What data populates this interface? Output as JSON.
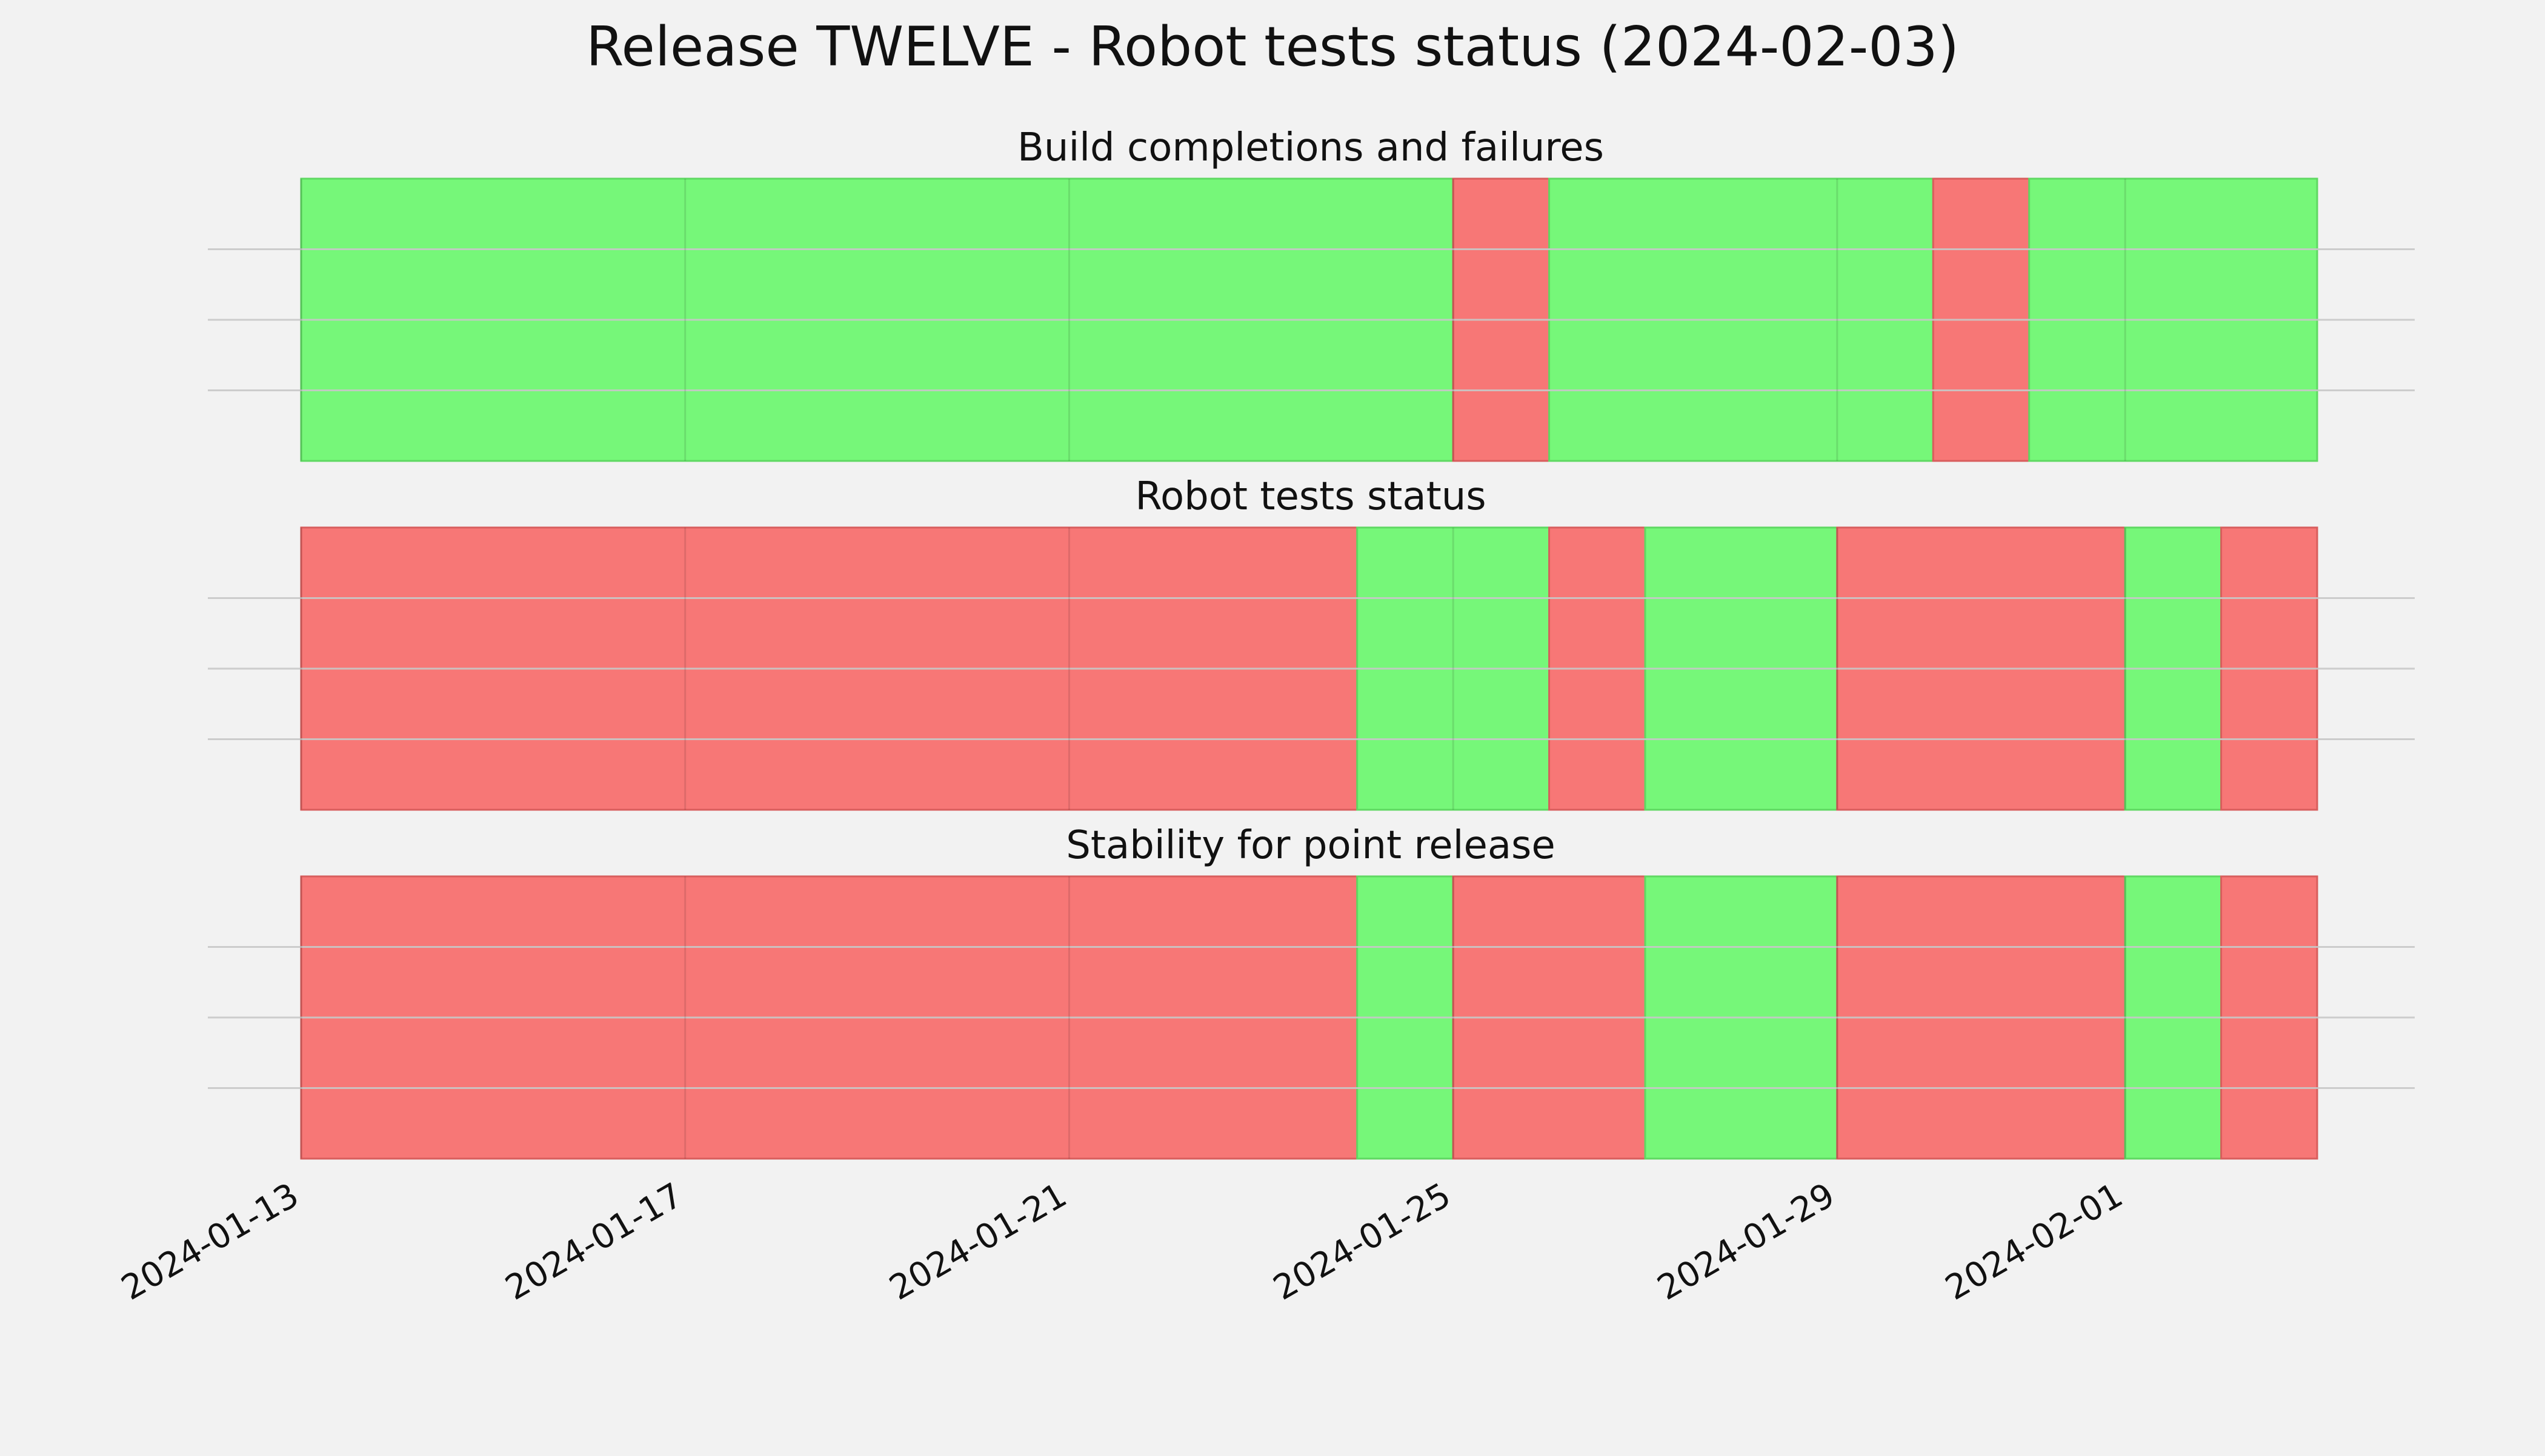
{
  "title": "Release TWELVE - Robot tests status (2024-02-03)",
  "colors": {
    "background": "#f2f2f2",
    "pass": "#76f779",
    "fail": "#f77776",
    "grid": "#c8c8c8"
  },
  "chart_data": {
    "type": "timeline",
    "x_ticks": [
      "2024-01-13",
      "2024-01-17",
      "2024-01-21",
      "2024-01-25",
      "2024-01-29",
      "2024-02-01"
    ],
    "xlim": [
      "2024-01-13",
      "2024-02-03"
    ],
    "grid": true,
    "panels": [
      {
        "title": "Build completions and failures",
        "segments": [
          {
            "start": "2024-01-13",
            "end": "2024-01-25",
            "status": "pass"
          },
          {
            "start": "2024-01-25",
            "end": "2024-01-26",
            "status": "fail"
          },
          {
            "start": "2024-01-26",
            "end": "2024-01-30",
            "status": "pass"
          },
          {
            "start": "2024-01-30",
            "end": "2024-01-31",
            "status": "fail"
          },
          {
            "start": "2024-01-31",
            "end": "2024-02-03",
            "status": "pass"
          }
        ]
      },
      {
        "title": "Robot tests status",
        "segments": [
          {
            "start": "2024-01-13",
            "end": "2024-01-24",
            "status": "fail"
          },
          {
            "start": "2024-01-24",
            "end": "2024-01-26",
            "status": "pass"
          },
          {
            "start": "2024-01-26",
            "end": "2024-01-27",
            "status": "fail"
          },
          {
            "start": "2024-01-27",
            "end": "2024-01-29",
            "status": "pass"
          },
          {
            "start": "2024-01-29",
            "end": "2024-02-01",
            "status": "fail"
          },
          {
            "start": "2024-02-01",
            "end": "2024-02-02",
            "status": "pass"
          },
          {
            "start": "2024-02-02",
            "end": "2024-02-03",
            "status": "fail"
          }
        ]
      },
      {
        "title": "Stability for point release",
        "segments": [
          {
            "start": "2024-01-13",
            "end": "2024-01-24",
            "status": "fail"
          },
          {
            "start": "2024-01-24",
            "end": "2024-01-25",
            "status": "pass"
          },
          {
            "start": "2024-01-25",
            "end": "2024-01-27",
            "status": "fail"
          },
          {
            "start": "2024-01-27",
            "end": "2024-01-29",
            "status": "pass"
          },
          {
            "start": "2024-01-29",
            "end": "2024-02-01",
            "status": "fail"
          },
          {
            "start": "2024-02-01",
            "end": "2024-02-02",
            "status": "pass"
          },
          {
            "start": "2024-02-02",
            "end": "2024-02-03",
            "status": "fail"
          }
        ]
      }
    ]
  }
}
